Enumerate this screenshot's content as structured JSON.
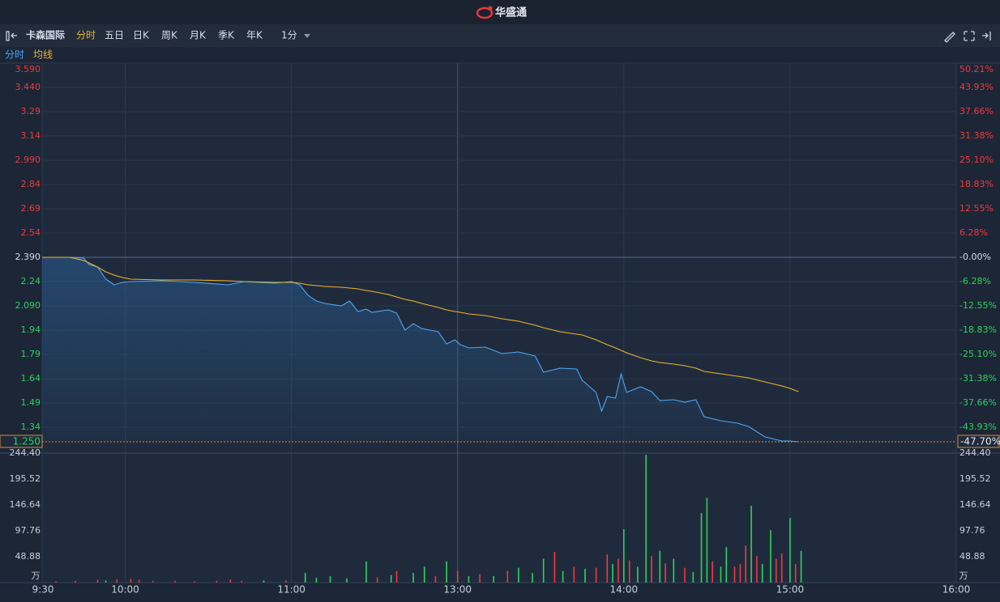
{
  "header": {
    "brand": "华盛通"
  },
  "toolbar": {
    "stock": "卡森国际",
    "tabs": [
      "分时",
      "五日",
      "日K",
      "周K",
      "月K",
      "季K",
      "年K"
    ],
    "active_tab": 0,
    "interval": "1分"
  },
  "chart_data": [
    {
      "type": "line",
      "prev_close": 2.39,
      "x": [
        0,
        10,
        15,
        17,
        20,
        23,
        26,
        29,
        32,
        43,
        55,
        67,
        73,
        84,
        90,
        93,
        96,
        99,
        102,
        108,
        111,
        114,
        117,
        119,
        125,
        128,
        131,
        134,
        137,
        143,
        146,
        149,
        151,
        154,
        160,
        166,
        172,
        178,
        181,
        187,
        193,
        195,
        200,
        202,
        204,
        207,
        209,
        211,
        216,
        220,
        223,
        228,
        232,
        236,
        239,
        245,
        251,
        255,
        261,
        267,
        270,
        273
      ],
      "series": [
        {
          "name": "分时",
          "color": "#4ea6f2",
          "values": [
            2.39,
            2.39,
            2.385,
            2.345,
            2.33,
            2.255,
            2.22,
            2.235,
            2.24,
            2.245,
            2.235,
            2.22,
            2.24,
            2.23,
            2.24,
            2.22,
            2.155,
            2.12,
            2.105,
            2.09,
            2.12,
            2.055,
            2.07,
            2.05,
            2.065,
            2.045,
            1.94,
            1.98,
            1.95,
            1.93,
            1.855,
            1.88,
            1.85,
            1.83,
            1.835,
            1.795,
            1.805,
            1.78,
            1.68,
            1.705,
            1.7,
            1.63,
            1.555,
            1.44,
            1.53,
            1.52,
            1.67,
            1.555,
            1.59,
            1.56,
            1.505,
            1.51,
            1.495,
            1.51,
            1.405,
            1.38,
            1.365,
            1.345,
            1.28,
            1.255,
            1.255,
            1.25
          ]
        },
        {
          "name": "均线",
          "color": "#f0b429",
          "values": [
            2.39,
            2.39,
            2.37,
            2.355,
            2.33,
            2.3,
            2.28,
            2.265,
            2.255,
            2.25,
            2.25,
            2.245,
            2.24,
            2.235,
            2.235,
            2.23,
            2.22,
            2.215,
            2.21,
            2.205,
            2.2,
            2.195,
            2.185,
            2.18,
            2.16,
            2.145,
            2.13,
            2.12,
            2.105,
            2.08,
            2.065,
            2.055,
            2.05,
            2.04,
            2.03,
            2.01,
            1.995,
            1.97,
            1.955,
            1.93,
            1.915,
            1.91,
            1.88,
            1.865,
            1.85,
            1.83,
            1.815,
            1.8,
            1.77,
            1.75,
            1.74,
            1.73,
            1.72,
            1.705,
            1.685,
            1.67,
            1.655,
            1.645,
            1.62,
            1.595,
            1.58,
            1.56
          ]
        }
      ],
      "xlim": [
        0,
        330
      ],
      "xticks": [
        {
          "value": 0,
          "label": "9:30"
        },
        {
          "value": 30,
          "label": "10:00"
        },
        {
          "value": 90,
          "label": "11:00"
        },
        {
          "value": 150,
          "label": "13:00"
        },
        {
          "value": 210,
          "label": "14:00"
        },
        {
          "value": 270,
          "label": "15:00"
        },
        {
          "value": 330,
          "label": "16:00"
        }
      ],
      "ylim": [
        1.25,
        3.59
      ],
      "yticks": [
        {
          "value": 3.59,
          "label": "3.590"
        },
        {
          "value": 3.44,
          "label": "3.440"
        },
        3.29,
        3.14,
        {
          "value": 2.99,
          "label": "2.990"
        },
        2.84,
        2.69,
        2.54,
        {
          "value": 2.39,
          "label": "2.390"
        },
        2.24,
        {
          "value": 2.09,
          "label": "2.090"
        },
        1.94,
        1.79,
        1.64,
        1.49,
        1.34,
        {
          "value": 1.25,
          "label": "1.250"
        }
      ],
      "y2lim": [
        -47.7,
        50.21
      ],
      "y2ticks": [
        {
          "value": 50.21,
          "label": "50.21%"
        },
        {
          "value": 43.93,
          "label": "43.93%"
        },
        {
          "value": 37.66,
          "label": "37.66%"
        },
        {
          "value": 31.38,
          "label": "31.38%"
        },
        {
          "value": 25.1,
          "label": "25.10%"
        },
        {
          "value": 18.83,
          "label": "18.83%"
        },
        {
          "value": 12.55,
          "label": "12.55%"
        },
        {
          "value": 6.28,
          "label": "6.28%"
        },
        {
          "value": 0,
          "label": "-0.00%"
        },
        {
          "value": -6.28,
          "label": "-6.28%"
        },
        {
          "value": -12.55,
          "label": "-12.55%"
        },
        {
          "value": -18.83,
          "label": "-18.83%"
        },
        {
          "value": -25.1,
          "label": "-25.10%"
        },
        {
          "value": -31.38,
          "label": "-31.38%"
        },
        {
          "value": -37.66,
          "label": "-37.66%"
        },
        {
          "value": -43.93,
          "label": "-43.93%"
        },
        {
          "value": -47.7,
          "label": "-47.70%"
        }
      ],
      "up_color": "#f0393c",
      "down_color": "#2fd159",
      "grid": true
    },
    {
      "type": "bar",
      "unit": "万",
      "x": [
        5,
        12,
        20,
        23,
        27,
        32,
        35,
        40,
        48,
        55,
        63,
        68,
        72,
        80,
        88,
        95,
        99,
        104,
        110,
        117,
        121,
        126,
        128,
        134,
        138,
        142,
        146,
        150,
        154,
        158,
        163,
        168,
        172,
        177,
        181,
        185,
        188,
        192,
        196,
        200,
        204,
        206,
        208,
        210,
        212,
        215,
        218,
        220,
        223,
        225,
        228,
        232,
        235,
        238,
        240,
        242,
        245,
        247,
        250,
        252,
        254,
        256,
        258,
        260,
        263,
        265,
        267,
        270,
        272,
        274
      ],
      "values": [
        2,
        3,
        5,
        4,
        6,
        7,
        5,
        3,
        3,
        2,
        3,
        6,
        3,
        4,
        4,
        18,
        9,
        12,
        8,
        40,
        10,
        14,
        22,
        18,
        30,
        12,
        40,
        22,
        12,
        16,
        12,
        22,
        28,
        18,
        45,
        58,
        22,
        30,
        26,
        28,
        53,
        35,
        45,
        101,
        42,
        30,
        241,
        50,
        60,
        36,
        45,
        28,
        20,
        131,
        160,
        40,
        30,
        67,
        30,
        35,
        70,
        145,
        50,
        35,
        99,
        45,
        55,
        122,
        35,
        60
      ],
      "colors": [
        "#f0393c",
        "#f0393c",
        "#f0393c",
        "#2fd159",
        "#f0393c",
        "#f0393c",
        "#f0393c",
        "#f0393c",
        "#f0393c",
        "#f0393c",
        "#f0393c",
        "#f0393c",
        "#f0393c",
        "#2fd159",
        "#f0393c",
        "#2fd159",
        "#2fd159",
        "#2fd159",
        "#2fd159",
        "#2fd159",
        "#f0393c",
        "#2fd159",
        "#f0393c",
        "#2fd159",
        "#2fd159",
        "#f0393c",
        "#2fd159",
        "#f0393c",
        "#2fd159",
        "#f0393c",
        "#2fd159",
        "#f0393c",
        "#2fd159",
        "#2fd159",
        "#2fd159",
        "#f0393c",
        "#2fd159",
        "#f0393c",
        "#2fd159",
        "#f0393c",
        "#f0393c",
        "#2fd159",
        "#f0393c",
        "#2fd159",
        "#f0393c",
        "#2fd159",
        "#2fd159",
        "#f0393c",
        "#2fd159",
        "#f0393c",
        "#2fd159",
        "#f0393c",
        "#2fd159",
        "#2fd159",
        "#2fd159",
        "#f0393c",
        "#2fd159",
        "#2fd159",
        "#f0393c",
        "#f0393c",
        "#f0393c",
        "#2fd159",
        "#f0393c",
        "#2fd159",
        "#2fd159",
        "#f0393c",
        "#f0393c",
        "#2fd159",
        "#f0393c",
        "#2fd159"
      ],
      "ylim": [
        0,
        244.4
      ],
      "yticks": [
        {
          "value": 244.4,
          "label": "244.40"
        },
        195.52,
        146.64,
        97.76,
        48.88
      ]
    }
  ]
}
